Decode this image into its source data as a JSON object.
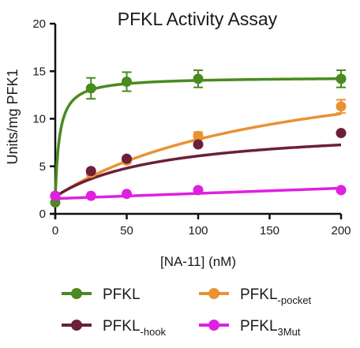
{
  "chart_data": {
    "type": "scatter",
    "title": "PFKL Activity Assay",
    "xlabel": "[NA-11] (nM)",
    "ylabel": "Units/mg PFK1",
    "xlim": [
      0,
      200
    ],
    "ylim": [
      0,
      20
    ],
    "xticks": [
      0,
      50,
      100,
      150,
      200
    ],
    "yticks": [
      0,
      5,
      10,
      15,
      20
    ],
    "grid": false,
    "legend_position": "bottom",
    "series": [
      {
        "name": "PFKL",
        "subscript": "",
        "color": "#4a8a1e",
        "x": [
          0,
          25,
          50,
          100,
          200
        ],
        "y": [
          1.2,
          13.2,
          13.9,
          14.2,
          14.2
        ],
        "err": [
          0,
          1.1,
          1.0,
          0.9,
          0.9
        ],
        "fit": {
          "model": "hyperbolic",
          "vmax": 14.4,
          "km": 3.0,
          "base": 1.8
        }
      },
      {
        "name": "PFKL",
        "subscript": "-pocket",
        "color": "#ea9232",
        "x": [
          0,
          25,
          50,
          100,
          200
        ],
        "y": [
          1.9,
          4.3,
          5.6,
          8.2,
          11.3
        ],
        "err": [
          0,
          0.3,
          0.3,
          0.4,
          0.7
        ],
        "fit": {
          "model": "hyperbolic",
          "vmax": 17.5,
          "km": 160,
          "base": 1.8
        }
      },
      {
        "name": "PFKL",
        "subscript": "-hook",
        "color": "#6b1f3a",
        "x": [
          0,
          25,
          50,
          100,
          200
        ],
        "y": [
          1.9,
          4.5,
          5.8,
          7.3,
          8.5
        ],
        "err": [
          0,
          0,
          0,
          0,
          0
        ],
        "fit": {
          "model": "hyperbolic",
          "vmax": 9.3,
          "km": 75,
          "base": 1.8
        }
      },
      {
        "name": "PFKL",
        "subscript": "3Mut",
        "color": "#e020e0",
        "x": [
          0,
          25,
          50,
          100,
          200
        ],
        "y": [
          1.9,
          1.9,
          2.1,
          2.5,
          2.5
        ],
        "err": [
          0,
          0,
          0,
          0,
          0
        ],
        "fit": {
          "model": "linear",
          "intercept": 1.6,
          "slope": 0.0055
        }
      }
    ]
  }
}
